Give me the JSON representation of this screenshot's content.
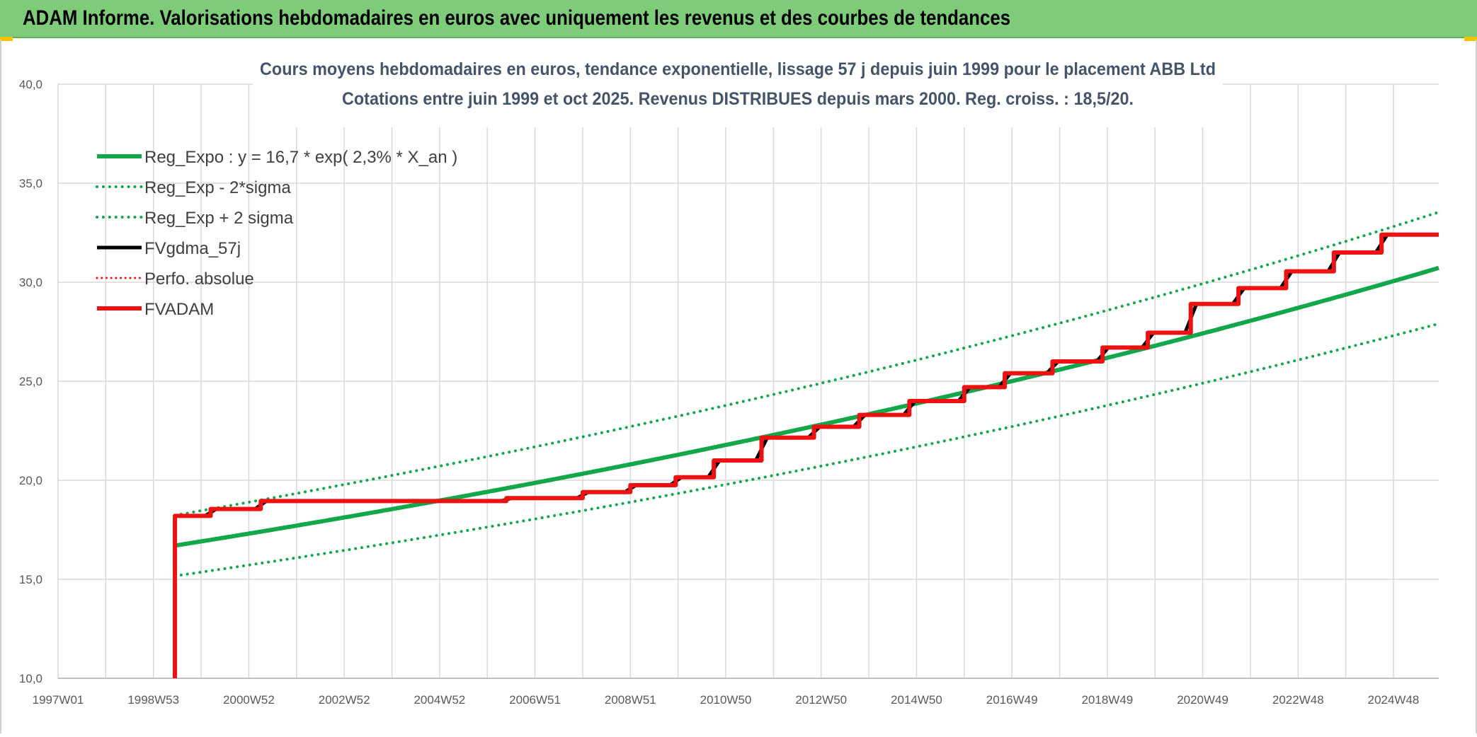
{
  "header": {
    "title": "ADAM Informe. Valorisations hebdomadaires en euros avec uniquement les revenus et des courbes de tendances"
  },
  "colors": {
    "banner": "#7ecb7a",
    "green": "#12a74a",
    "red": "#ee1111",
    "black": "#000000",
    "grid": "#d9d9d9"
  },
  "chart_data": {
    "type": "line",
    "title": "Cours moyens hebdomadaires en euros, tendance exponentielle, lissage 57 j depuis juin 1999 pour le placement ABB Ltd",
    "subtitle": "Cotations entre juin 1999 et oct 2025. Revenus DISTRIBUES depuis mars 2000. Reg. croiss. : 18,5/20.",
    "xlabel": "",
    "ylabel": "",
    "x_ticks": [
      "1997W01",
      "1998W53",
      "2000W52",
      "2002W52",
      "2004W52",
      "2006W51",
      "2008W51",
      "2010W50",
      "2012W50",
      "2014W50",
      "2016W49",
      "2018W49",
      "2020W49",
      "2022W48",
      "2024W48"
    ],
    "xlim": [
      1997.0,
      2025.95
    ],
    "ylim": [
      10,
      40
    ],
    "y_ticks": [
      "10,0",
      "15,0",
      "20,0",
      "25,0",
      "30,0",
      "35,0",
      "40,0"
    ],
    "grid": true,
    "legend_position": "top-left",
    "regression": {
      "a": 16.7,
      "rate": 0.023,
      "start_year": 1999.45,
      "sigma_factor": 0.0917
    },
    "series": [
      {
        "name": "Reg_Expo : y = 16,7 * exp( 2,3% *  X_an )",
        "style": "solid",
        "color": "#12a74a",
        "width": 6,
        "kind": "regression"
      },
      {
        "name": "Reg_Exp - 2*sigma",
        "style": "dotted",
        "color": "#12a74a",
        "width": 4,
        "kind": "lower"
      },
      {
        "name": "Reg_Exp + 2 sigma",
        "style": "dotted",
        "color": "#12a74a",
        "width": 4,
        "kind": "upper"
      },
      {
        "name": "FVgdma_57j",
        "style": "solid",
        "color": "#000000",
        "width": 5,
        "kind": "smooth"
      },
      {
        "name": "Perfo. absolue",
        "style": "dotted",
        "color": "#ee1111",
        "width": 3,
        "kind": "none"
      },
      {
        "name": "FVADAM",
        "style": "solid",
        "color": "#ee1111",
        "width": 6,
        "kind": "steps"
      }
    ],
    "fvadam_start": {
      "x": 1999.45,
      "y_from": 10.0,
      "y_to": 18.2
    },
    "fvadam_steps": [
      [
        1999.45,
        18.2
      ],
      [
        2000.2,
        18.55
      ],
      [
        2001.25,
        18.95
      ],
      [
        2006.4,
        19.1
      ],
      [
        2008.0,
        19.4
      ],
      [
        2009.0,
        19.75
      ],
      [
        2009.95,
        20.15
      ],
      [
        2010.75,
        21.0
      ],
      [
        2011.75,
        22.15
      ],
      [
        2012.85,
        22.7
      ],
      [
        2013.8,
        23.3
      ],
      [
        2014.85,
        24.0
      ],
      [
        2016.0,
        24.7
      ],
      [
        2016.85,
        25.4
      ],
      [
        2017.85,
        26.0
      ],
      [
        2018.9,
        26.7
      ],
      [
        2019.85,
        27.45
      ],
      [
        2020.75,
        28.9
      ],
      [
        2021.75,
        29.7
      ],
      [
        2022.75,
        30.55
      ],
      [
        2023.75,
        31.5
      ],
      [
        2024.75,
        32.4
      ]
    ],
    "fvadam_end": 2025.95
  }
}
